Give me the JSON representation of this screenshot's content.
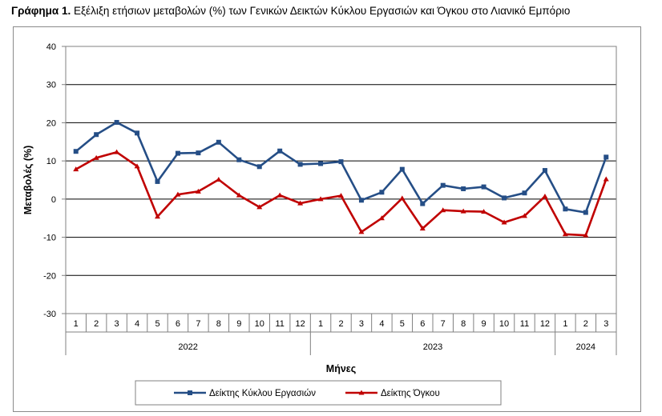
{
  "header": {
    "title_bold": "Γράφημα 1.",
    "title_rest": " Εξέλιξη ετήσιων μεταβολών (%) των Γενικών Δεικτών Κύκλου Εργασιών και Όγκου στο Λιανικό Εμπόριο"
  },
  "chart_data": {
    "type": "line",
    "title": "Γράφημα 1. Εξέλιξη ετήσιων μεταβολών (%) των Γενικών Δεικτών Κύκλου Εργασιών και Όγκου στο Λιανικό Εμπόριο",
    "xlabel": "Μήνες",
    "ylabel": "Μεταβολές  (%)",
    "ylim": [
      -30,
      40
    ],
    "yticks": [
      -30,
      -20,
      -10,
      0,
      10,
      20,
      30,
      40
    ],
    "grid": true,
    "legend_position": "bottom",
    "categories": [
      "1",
      "2",
      "3",
      "4",
      "5",
      "6",
      "7",
      "8",
      "9",
      "10",
      "11",
      "12",
      "1",
      "2",
      "3",
      "4",
      "5",
      "6",
      "7",
      "8",
      "9",
      "10",
      "11",
      "12",
      "1",
      "2",
      "3"
    ],
    "groups": [
      {
        "label": "2022",
        "count": 12
      },
      {
        "label": "2023",
        "count": 12
      },
      {
        "label": "2024",
        "count": 3
      }
    ],
    "series": [
      {
        "name": "Δείκτης Κύκλου Εργασιών",
        "color": "#254E86",
        "marker": "square",
        "values": [
          12.5,
          16.9,
          20.1,
          17.3,
          4.6,
          12.0,
          12.1,
          14.9,
          10.3,
          8.5,
          12.6,
          9.1,
          9.3,
          9.8,
          -0.3,
          1.8,
          7.8,
          -1.2,
          3.6,
          2.7,
          3.2,
          0.3,
          1.6,
          7.5,
          -2.6,
          -3.5,
          11.0
        ]
      },
      {
        "name": "Δείκτης Όγκου",
        "color": "#C00000",
        "marker": "triangle",
        "values": [
          7.8,
          10.8,
          12.3,
          8.6,
          -4.6,
          1.2,
          2.0,
          5.1,
          1.0,
          -2.1,
          1.0,
          -1.1,
          0.0,
          0.9,
          -8.6,
          -5.0,
          0.2,
          -7.7,
          -2.9,
          -3.2,
          -3.3,
          -6.1,
          -4.4,
          0.7,
          -9.2,
          -9.5,
          5.2
        ]
      }
    ]
  }
}
